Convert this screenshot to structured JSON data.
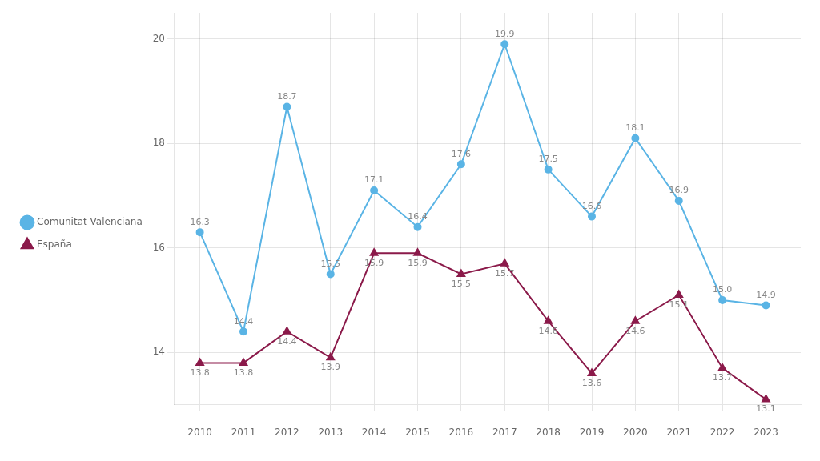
{
  "chart_data": {
    "type": "line",
    "x": [
      2010,
      2011,
      2012,
      2013,
      2014,
      2015,
      2016,
      2017,
      2018,
      2019,
      2020,
      2021,
      2022,
      2023
    ],
    "series": [
      {
        "name": "Comunitat Valenciana",
        "color": "#5ab4e5",
        "marker": "circle",
        "values": [
          16.3,
          14.4,
          18.7,
          15.5,
          17.1,
          16.4,
          17.6,
          19.9,
          17.5,
          16.6,
          18.1,
          16.9,
          15.0,
          14.9
        ],
        "value_labels": [
          "16.3",
          "14.4",
          "18.7",
          "15.5",
          "17.1",
          "16.4",
          "17.6",
          "19.9",
          "17.5",
          "16.6",
          "18.1",
          "16.9",
          "15.0",
          "14.9"
        ]
      },
      {
        "name": "España",
        "color": "#8b1a4a",
        "marker": "triangle",
        "values": [
          13.8,
          13.8,
          14.4,
          13.9,
          15.9,
          15.9,
          15.5,
          15.7,
          14.6,
          13.6,
          14.6,
          15.1,
          13.7,
          13.1
        ]
      }
    ],
    "xlim": [
      2009.4,
      2023.8
    ],
    "xticks": [
      2010,
      2011,
      2012,
      2013,
      2014,
      2015,
      2016,
      2017,
      2018,
      2019,
      2020,
      2021,
      2022,
      2023
    ],
    "ylim": [
      13.0,
      20.5
    ],
    "yticks": [
      14,
      16,
      18,
      20
    ],
    "grid": true,
    "legend": "left",
    "data_labels": true
  }
}
